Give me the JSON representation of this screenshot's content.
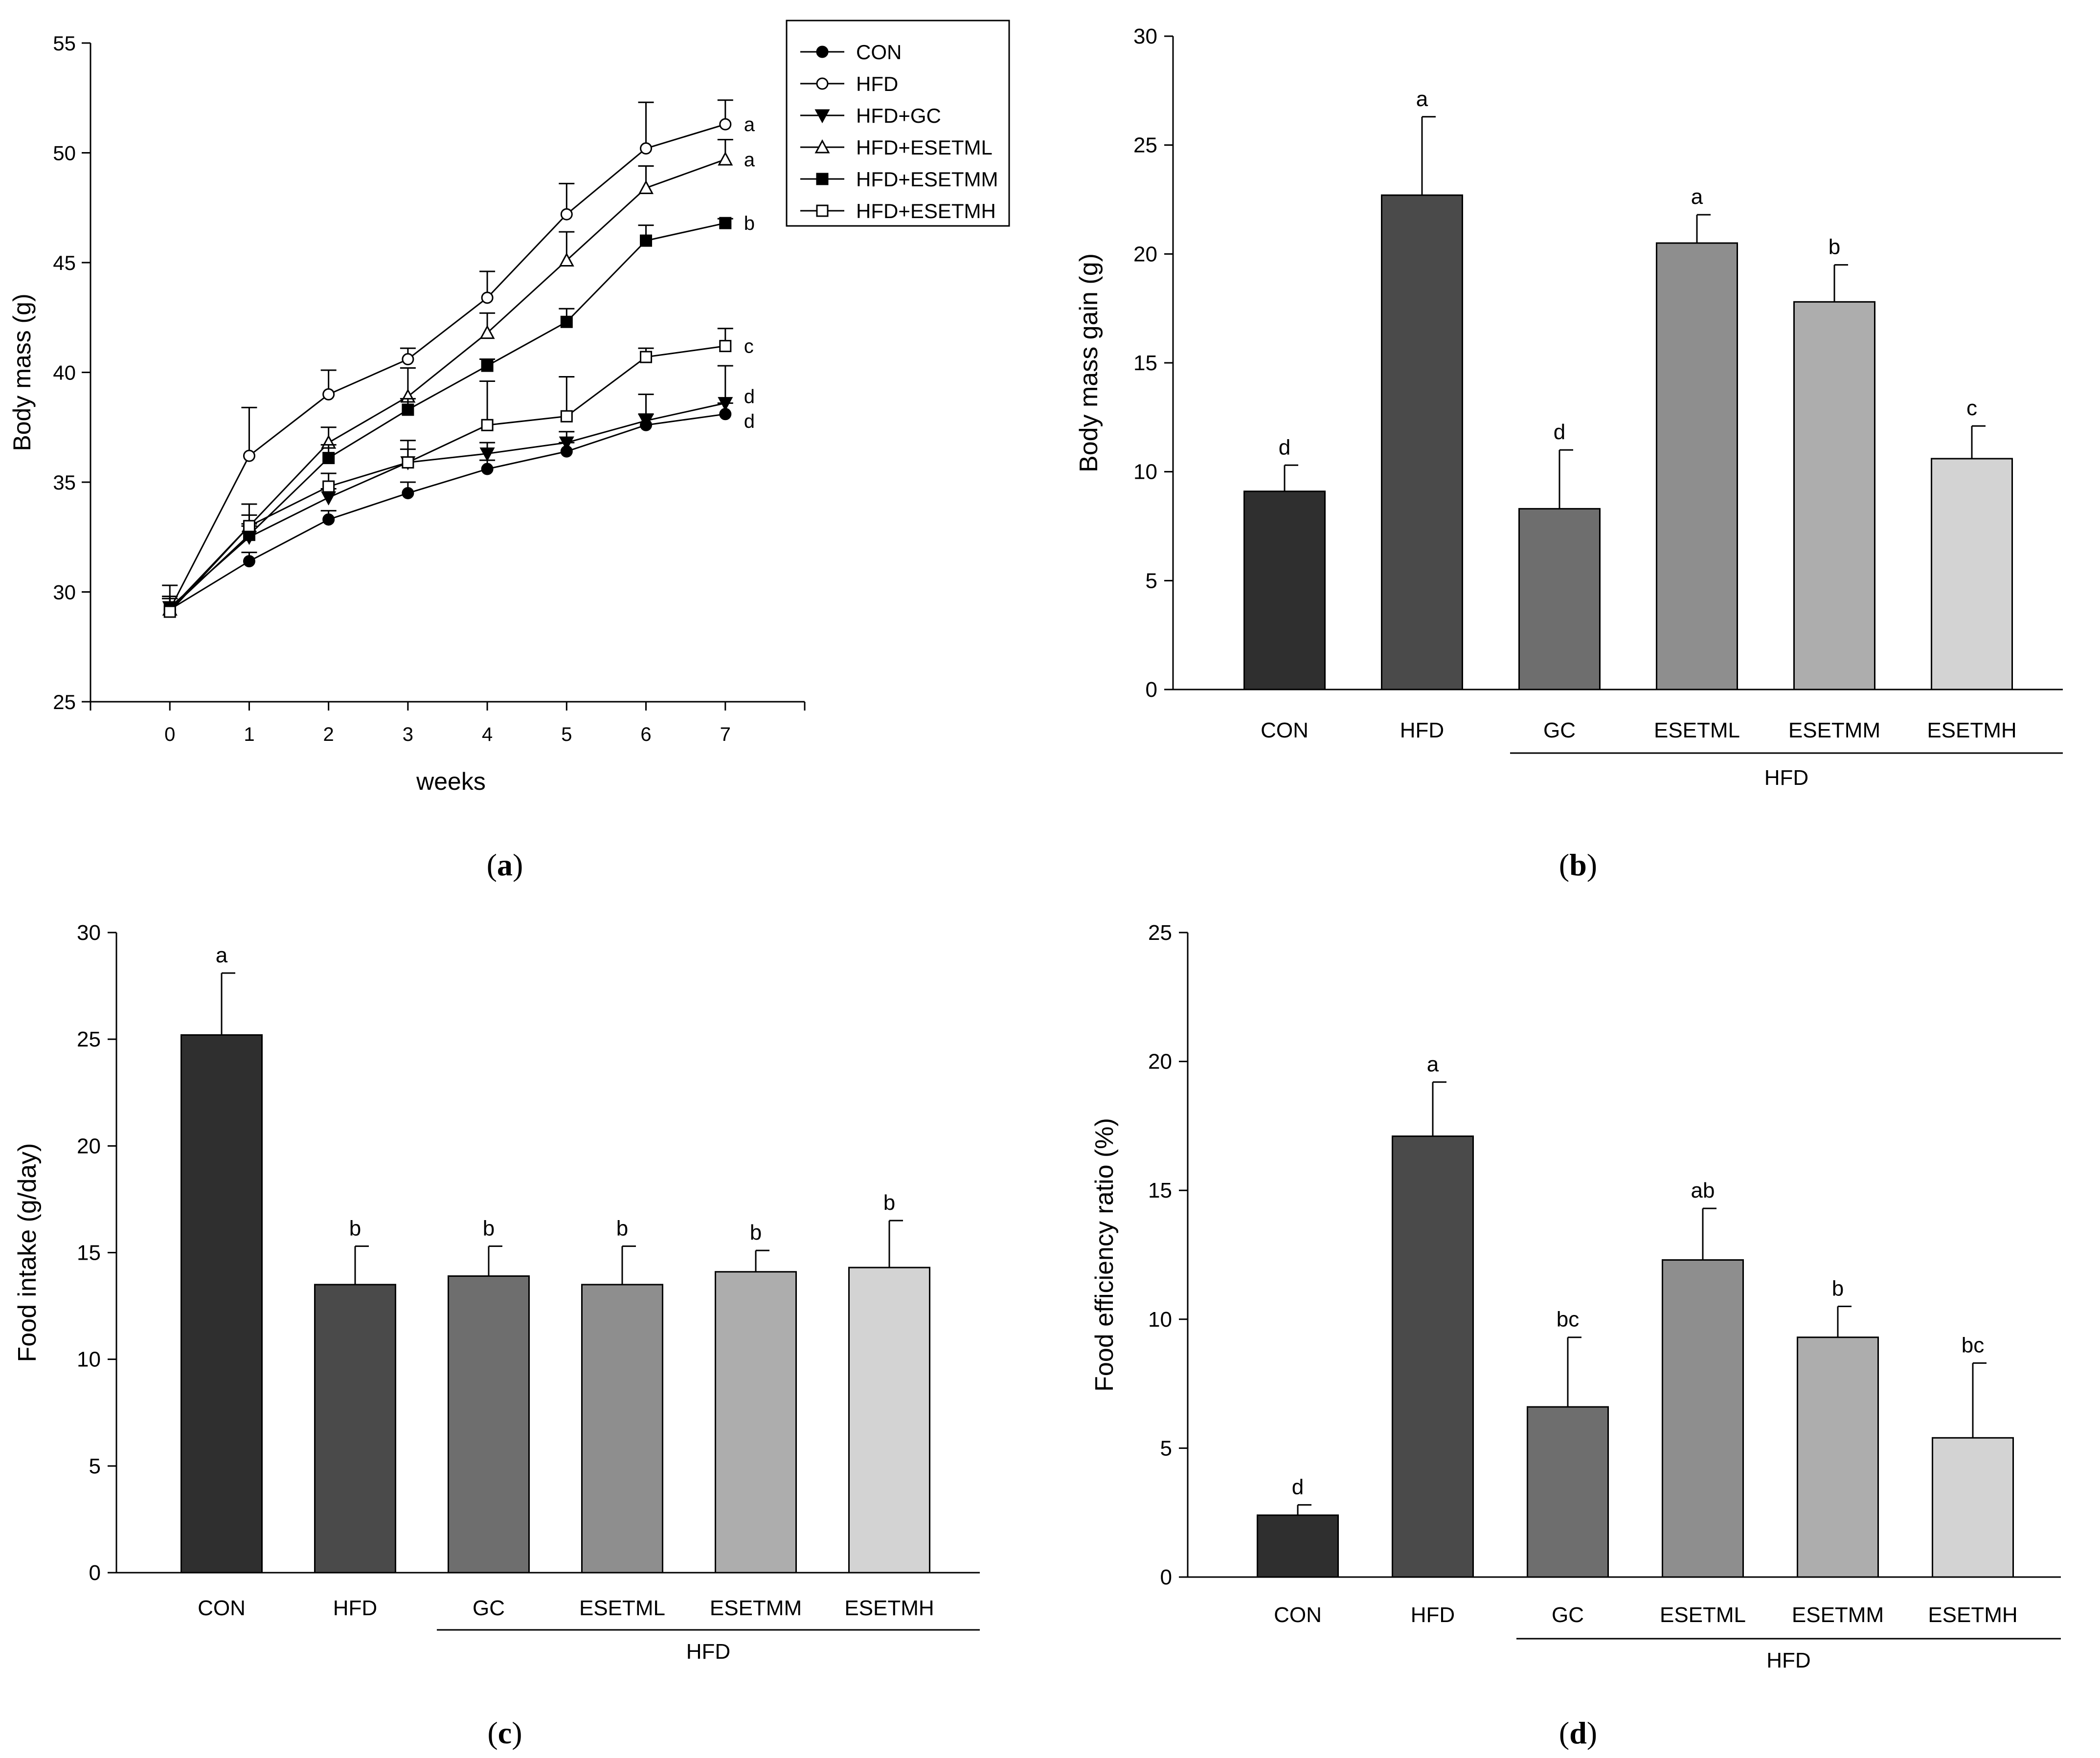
{
  "chart_data": [
    {
      "id": "a",
      "type": "line",
      "panel_label": "a",
      "xlabel": "weeks",
      "ylabel": "Body mass (g)",
      "x": [
        0,
        1,
        2,
        3,
        4,
        5,
        6,
        7
      ],
      "x_ticks": [
        "0",
        "1",
        "2",
        "3",
        "4",
        "5",
        "6",
        "7"
      ],
      "xlim": [
        -1,
        8
      ],
      "ylim": [
        25,
        55
      ],
      "y_ticks": [
        "25",
        "30",
        "35",
        "40",
        "45",
        "50",
        "55"
      ],
      "legend_position": "top-right",
      "series": [
        {
          "name": "CON",
          "marker": "circle-filled",
          "values": [
            29.2,
            31.4,
            33.3,
            34.5,
            35.6,
            36.4,
            37.6,
            38.1
          ],
          "errors": [
            0.5,
            0.4,
            0.4,
            0.5,
            0.4,
            0.4,
            0.5,
            0.5
          ],
          "sig": "d"
        },
        {
          "name": "HFD",
          "marker": "circle-open",
          "values": [
            29.2,
            36.2,
            39.0,
            40.6,
            43.4,
            47.2,
            50.2,
            51.3
          ],
          "errors": [
            0.6,
            2.2,
            1.1,
            0.5,
            1.2,
            1.4,
            2.1,
            1.1
          ],
          "sig": "a"
        },
        {
          "name": "HFD+GC",
          "marker": "triangle-down-filled",
          "values": [
            29.3,
            32.5,
            34.3,
            35.9,
            36.3,
            36.8,
            37.8,
            38.6
          ],
          "errors": [
            0.4,
            0.5,
            0.4,
            1.0,
            0.5,
            0.5,
            1.2,
            1.7
          ],
          "sig": "d"
        },
        {
          "name": "HFD+ESETML",
          "marker": "triangle-up-open",
          "values": [
            29.2,
            33.0,
            36.8,
            38.9,
            41.8,
            45.1,
            48.4,
            49.7
          ],
          "errors": [
            0.5,
            0.5,
            0.7,
            1.3,
            0.9,
            1.3,
            1.0,
            0.9
          ],
          "sig": "a"
        },
        {
          "name": "HFD+ESETMM",
          "marker": "square-filled",
          "values": [
            29.2,
            32.6,
            36.1,
            38.3,
            40.3,
            42.3,
            46.0,
            46.8
          ],
          "errors": [
            0.6,
            0.5,
            0.6,
            0.5,
            0.3,
            0.6,
            0.7,
            0.2
          ],
          "sig": "b"
        },
        {
          "name": "HFD+ESETMH",
          "marker": "square-open",
          "values": [
            29.1,
            33.0,
            34.8,
            35.9,
            37.6,
            38.0,
            40.7,
            41.2
          ],
          "errors": [
            1.2,
            1.0,
            0.6,
            0.6,
            2.0,
            1.8,
            0.4,
            0.8
          ],
          "sig": "c"
        }
      ]
    },
    {
      "id": "b",
      "type": "bar",
      "panel_label": "b",
      "ylabel": "Body mass gain (g)",
      "categories": [
        "CON",
        "HFD",
        "GC",
        "ESETML",
        "ESETMM",
        "ESETMH"
      ],
      "values": [
        9.1,
        22.7,
        8.3,
        20.5,
        17.8,
        10.6
      ],
      "errors": [
        1.2,
        3.6,
        2.7,
        1.3,
        1.7,
        1.5
      ],
      "sig_labels": [
        "d",
        "a",
        "d",
        "a",
        "b",
        "c"
      ],
      "colors": [
        "#2f2f2f",
        "#4a4a4a",
        "#6e6e6e",
        "#8e8e8e",
        "#adadad",
        "#d3d3d3"
      ],
      "group_label": "HFD",
      "group_start_index": 2,
      "ylim": [
        0,
        30
      ],
      "y_ticks": [
        "0",
        "5",
        "10",
        "15",
        "20",
        "25",
        "30"
      ]
    },
    {
      "id": "c",
      "type": "bar",
      "panel_label": "c",
      "ylabel": "Food intake (g/day)",
      "categories": [
        "CON",
        "HFD",
        "GC",
        "ESETML",
        "ESETMM",
        "ESETMH"
      ],
      "values": [
        25.2,
        13.5,
        13.9,
        13.5,
        14.1,
        14.3
      ],
      "errors": [
        2.9,
        1.8,
        1.4,
        1.8,
        1.0,
        2.2
      ],
      "sig_labels": [
        "a",
        "b",
        "b",
        "b",
        "b",
        "b"
      ],
      "colors": [
        "#2f2f2f",
        "#4a4a4a",
        "#6e6e6e",
        "#8e8e8e",
        "#adadad",
        "#d3d3d3"
      ],
      "group_label": "HFD",
      "group_start_index": 2,
      "ylim": [
        0,
        30
      ],
      "y_ticks": [
        "0",
        "5",
        "10",
        "15",
        "20",
        "25",
        "30"
      ]
    },
    {
      "id": "d",
      "type": "bar",
      "panel_label": "d",
      "ylabel": "Food efficiency ratio (%)",
      "categories": [
        "CON",
        "HFD",
        "GC",
        "ESETML",
        "ESETMM",
        "ESETMH"
      ],
      "values": [
        2.4,
        17.1,
        6.6,
        12.3,
        9.3,
        5.4
      ],
      "errors": [
        0.4,
        2.1,
        2.7,
        2.0,
        1.2,
        2.9
      ],
      "sig_labels": [
        "d",
        "a",
        "bc",
        "ab",
        "b",
        "bc"
      ],
      "colors": [
        "#2f2f2f",
        "#4a4a4a",
        "#6e6e6e",
        "#8e8e8e",
        "#adadad",
        "#d3d3d3"
      ],
      "group_label": "HFD",
      "group_start_index": 2,
      "ylim": [
        0,
        25
      ],
      "y_ticks": [
        "0",
        "5",
        "10",
        "15",
        "20",
        "25"
      ]
    }
  ]
}
